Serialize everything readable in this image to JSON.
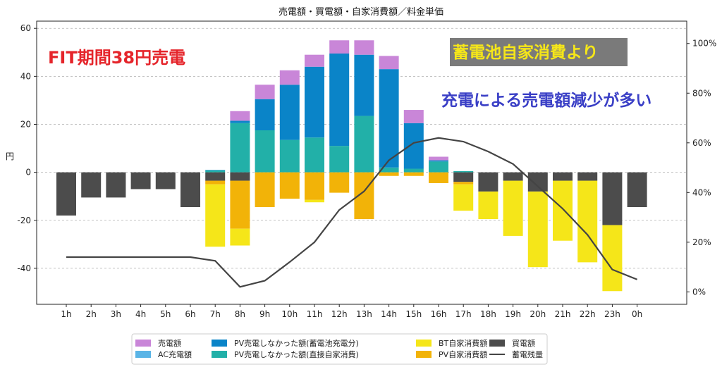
{
  "chart_data": {
    "type": "bar",
    "title": "売電額・買電額・自家消費額／料金単価",
    "ylabel": "円",
    "ylim": [
      -55,
      63
    ],
    "yticks": [
      60,
      40,
      20,
      0,
      -20,
      -40
    ],
    "y2lim": [
      -0.05,
      1.09
    ],
    "y2ticks": [
      "100%",
      "80%",
      "60%",
      "40%",
      "20%",
      "0%"
    ],
    "y2tick_values": [
      1.0,
      0.8,
      0.6,
      0.4,
      0.2,
      0.0
    ],
    "categories": [
      "1h",
      "2h",
      "3h",
      "4h",
      "5h",
      "6h",
      "7h",
      "8h",
      "9h",
      "10h",
      "11h",
      "12h",
      "13h",
      "14h",
      "15h",
      "16h",
      "17h",
      "18h",
      "19h",
      "20h",
      "21h",
      "22h",
      "23h",
      "0h"
    ],
    "grid": "horizontal-dashed",
    "legend_position": "bottom",
    "series": [
      {
        "name": "PV売電しなかった額(直接自家消費)",
        "color": "#22b0a8",
        "stack": "pos",
        "values": [
          0,
          0,
          0,
          0,
          0,
          0,
          0.8,
          20.5,
          17.5,
          13.5,
          14.5,
          11,
          23.5,
          2,
          1.5,
          4.5,
          0.5,
          0,
          0,
          0,
          0,
          0,
          0,
          0
        ]
      },
      {
        "name": "PV売電しなかった額(蓄電池充電分)",
        "color": "#0a84c8",
        "stack": "pos",
        "values": [
          0,
          0,
          0,
          0,
          0,
          0,
          0.2,
          1,
          13,
          23,
          29.5,
          38.5,
          25.5,
          41,
          19,
          0.5,
          0,
          0,
          0,
          0,
          0,
          0,
          0,
          0
        ]
      },
      {
        "name": "AC充電額",
        "color": "#5ab4e6",
        "stack": "pos",
        "values": [
          0,
          0,
          0,
          0,
          0,
          0,
          0,
          0,
          0,
          0,
          0,
          0,
          0,
          0,
          0,
          0,
          0,
          0,
          0,
          0,
          0,
          0,
          0,
          0
        ]
      },
      {
        "name": "売電額",
        "color": "#c986d8",
        "stack": "pos",
        "values": [
          0,
          0,
          0,
          0,
          0,
          0,
          0,
          4,
          6,
          6,
          5,
          5.5,
          6,
          5.5,
          5.5,
          1.5,
          0,
          0,
          0,
          0,
          0,
          0,
          0,
          0
        ]
      },
      {
        "name": "買電額",
        "color": "#4c4c4c",
        "stack": "neg",
        "values": [
          -18,
          -10.5,
          -10.5,
          -7,
          -7,
          -14.5,
          -3.5,
          -3.5,
          0,
          0,
          0,
          0,
          0,
          0,
          0,
          0,
          -4,
          -8,
          -3.5,
          -8,
          -3.5,
          -3.5,
          -22,
          -14.5
        ]
      },
      {
        "name": "PV自家消費額",
        "color": "#f2b308",
        "stack": "neg",
        "values": [
          0,
          0,
          0,
          0,
          0,
          0,
          -1.5,
          -20,
          -14.5,
          -11,
          -11.5,
          -8.5,
          -19.5,
          -1.5,
          -1.5,
          -4.5,
          -1,
          0,
          0,
          0,
          0,
          0,
          0,
          0
        ]
      },
      {
        "name": "BT自家消費額",
        "color": "#f5e619",
        "stack": "neg",
        "values": [
          0,
          0,
          0,
          0,
          0,
          0,
          -26,
          -7,
          0,
          0,
          -1,
          0,
          0,
          0,
          0,
          0,
          -11,
          -11.5,
          -23,
          -31.5,
          -25,
          -34,
          -27.5,
          0
        ]
      }
    ],
    "line_series": {
      "name": "蓄電残量",
      "color": "#444444",
      "axis": "right",
      "values": [
        0.14,
        0.14,
        0.14,
        0.14,
        0.14,
        0.14,
        0.125,
        0.02,
        0.045,
        0.12,
        0.2,
        0.33,
        0.405,
        0.53,
        0.6,
        0.62,
        0.605,
        0.565,
        0.515,
        0.425,
        0.335,
        0.23,
        0.09,
        0.05
      ]
    },
    "annotations": [
      {
        "text": "FIT期間38円売電",
        "color": "#e5252b"
      },
      {
        "text": "蓄電池自家消費より",
        "color": "#f5e619",
        "background": "#7a7a7a"
      },
      {
        "text": "充電による売電額減少が多い",
        "color": "#3a3fc6"
      }
    ]
  },
  "legend": [
    {
      "label": "売電額",
      "color": "#c986d8",
      "kind": "box"
    },
    {
      "label": "AC充電額",
      "color": "#5ab4e6",
      "kind": "box"
    },
    {
      "label": "PV売電しなかった額(蓄電池充電分)",
      "color": "#0a84c8",
      "kind": "box"
    },
    {
      "label": "PV売電しなかった額(直接自家消費)",
      "color": "#22b0a8",
      "kind": "box"
    },
    {
      "label": "BT自家消費額",
      "color": "#f5e619",
      "kind": "box"
    },
    {
      "label": "PV自家消費額",
      "color": "#f2b308",
      "kind": "box"
    },
    {
      "label": "買電額",
      "color": "#4c4c4c",
      "kind": "box"
    },
    {
      "label": "蓄電残量",
      "color": "#444444",
      "kind": "line"
    }
  ]
}
